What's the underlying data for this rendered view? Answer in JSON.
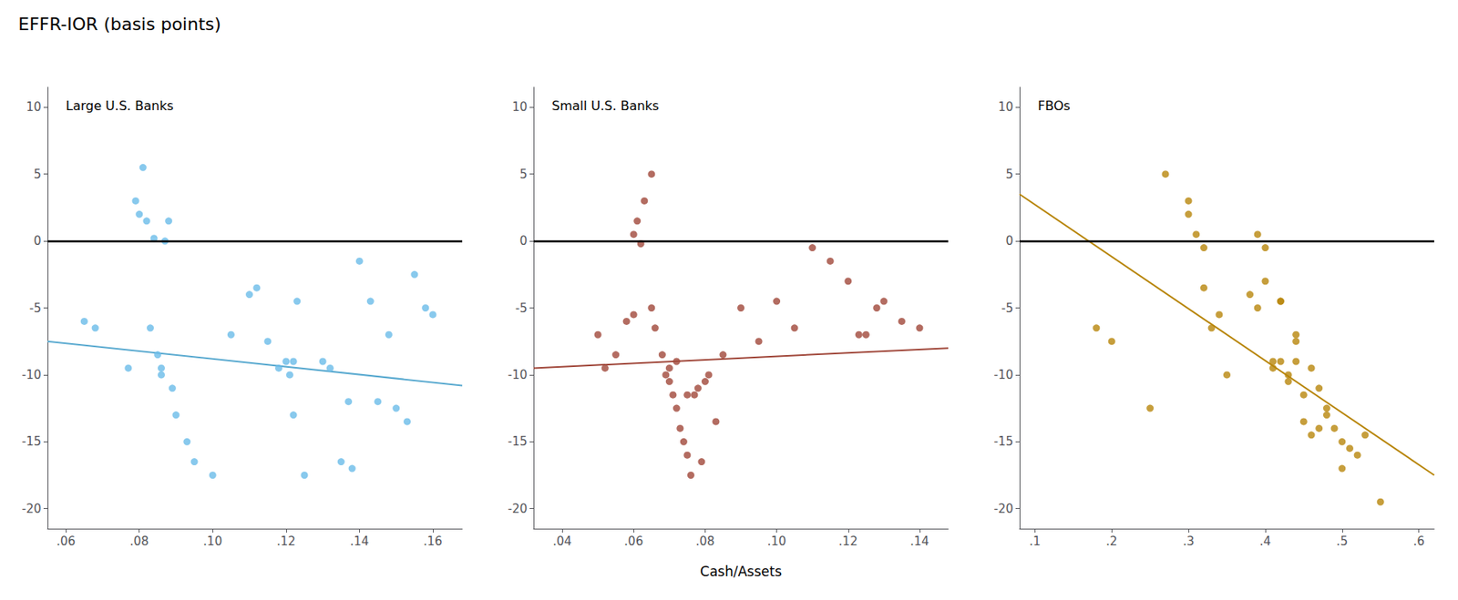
{
  "chart_data": [
    {
      "type": "scatter",
      "title": "EFFR-IOR (basis points)",
      "subtitle": "Large U.S. Banks",
      "grid": false,
      "xlim": [
        0.055,
        0.168
      ],
      "xticks": [
        {
          "value": 0.06,
          "label": ".06"
        },
        {
          "value": 0.08,
          "label": ".08"
        },
        {
          "value": 0.1,
          "label": ".10"
        },
        {
          "value": 0.12,
          "label": ".12"
        },
        {
          "value": 0.14,
          "label": ".14"
        },
        {
          "value": 0.16,
          "label": ".16"
        }
      ],
      "ylim": [
        -21.5,
        11.5
      ],
      "yticks": [
        -20,
        -15,
        -10,
        -5,
        0,
        5,
        10
      ],
      "series": [
        {
          "type": "scatter",
          "color": "#6ABBE8",
          "x": [
            0.065,
            0.068,
            0.077,
            0.079,
            0.08,
            0.081,
            0.082,
            0.083,
            0.084,
            0.085,
            0.086,
            0.086,
            0.087,
            0.088,
            0.089,
            0.09,
            0.093,
            0.095,
            0.1,
            0.105,
            0.11,
            0.112,
            0.115,
            0.118,
            0.12,
            0.121,
            0.122,
            0.122,
            0.123,
            0.125,
            0.13,
            0.132,
            0.135,
            0.137,
            0.138,
            0.14,
            0.143,
            0.145,
            0.148,
            0.15,
            0.153,
            0.155,
            0.158,
            0.16
          ],
          "values": [
            -6.0,
            -6.5,
            -9.5,
            3.0,
            2.0,
            5.5,
            1.5,
            -6.5,
            0.2,
            -8.5,
            -9.5,
            -10.0,
            0.0,
            1.5,
            -11.0,
            -13.0,
            -15.0,
            -16.5,
            -17.5,
            -7.0,
            -4.0,
            -3.5,
            -7.5,
            -9.5,
            -9.0,
            -10.0,
            -9.0,
            -13.0,
            -4.5,
            -17.5,
            -9.0,
            -9.5,
            -16.5,
            -12.0,
            -17.0,
            -1.5,
            -4.5,
            -12.0,
            -7.0,
            -12.5,
            -13.5,
            -2.5,
            -5.0,
            -5.5
          ]
        },
        {
          "type": "line",
          "color": "#5AAAD0",
          "x": [
            0.055,
            0.168
          ],
          "values": [
            -7.5,
            -10.8
          ]
        },
        {
          "type": "hline",
          "color": "#000000",
          "values": [
            0
          ]
        }
      ]
    },
    {
      "type": "scatter",
      "subtitle": "Small U.S. Banks",
      "xlabel": "Cash/Assets",
      "grid": false,
      "xlim": [
        0.032,
        0.148
      ],
      "xticks": [
        {
          "value": 0.04,
          "label": ".04"
        },
        {
          "value": 0.06,
          "label": ".06"
        },
        {
          "value": 0.08,
          "label": ".08"
        },
        {
          "value": 0.1,
          "label": ".10"
        },
        {
          "value": 0.12,
          "label": ".12"
        },
        {
          "value": 0.14,
          "label": ".14"
        }
      ],
      "ylim": [
        -21.5,
        11.5
      ],
      "yticks": [
        -20,
        -15,
        -10,
        -5,
        0,
        5,
        10
      ],
      "series": [
        {
          "type": "scatter",
          "color": "#A0473A",
          "x": [
            0.05,
            0.052,
            0.055,
            0.058,
            0.06,
            0.06,
            0.061,
            0.062,
            0.063,
            0.065,
            0.065,
            0.066,
            0.068,
            0.069,
            0.07,
            0.07,
            0.071,
            0.072,
            0.072,
            0.073,
            0.074,
            0.075,
            0.075,
            0.076,
            0.077,
            0.078,
            0.079,
            0.08,
            0.081,
            0.083,
            0.085,
            0.09,
            0.095,
            0.1,
            0.105,
            0.11,
            0.115,
            0.12,
            0.123,
            0.125,
            0.128,
            0.13,
            0.135,
            0.14
          ],
          "values": [
            -7.0,
            -9.5,
            -8.5,
            -6.0,
            0.5,
            -5.5,
            1.5,
            -0.2,
            3.0,
            5.0,
            -5.0,
            -6.5,
            -8.5,
            -10.0,
            -9.5,
            -10.5,
            -11.5,
            -12.5,
            -9.0,
            -14.0,
            -15.0,
            -16.0,
            -11.5,
            -17.5,
            -11.5,
            -11.0,
            -16.5,
            -10.5,
            -10.0,
            -13.5,
            -8.5,
            -5.0,
            -7.5,
            -4.5,
            -6.5,
            -0.5,
            -1.5,
            -3.0,
            -7.0,
            -7.0,
            -5.0,
            -4.5,
            -6.0,
            -6.5
          ]
        },
        {
          "type": "line",
          "color": "#A0473A",
          "x": [
            0.032,
            0.148
          ],
          "values": [
            -9.5,
            -8.0
          ]
        },
        {
          "type": "hline",
          "color": "#000000",
          "values": [
            0
          ]
        }
      ]
    },
    {
      "type": "scatter",
      "subtitle": "FBOs",
      "grid": false,
      "xlim": [
        0.08,
        0.62
      ],
      "xticks": [
        {
          "value": 0.1,
          "label": ".1"
        },
        {
          "value": 0.2,
          "label": ".2"
        },
        {
          "value": 0.3,
          "label": ".3"
        },
        {
          "value": 0.4,
          "label": ".4"
        },
        {
          "value": 0.5,
          "label": ".5"
        },
        {
          "value": 0.6,
          "label": ".6"
        }
      ],
      "ylim": [
        -21.5,
        11.5
      ],
      "yticks": [
        -20,
        -15,
        -10,
        -5,
        0,
        5,
        10
      ],
      "series": [
        {
          "type": "scatter",
          "color": "#B8860B",
          "x": [
            0.18,
            0.2,
            0.25,
            0.27,
            0.3,
            0.3,
            0.31,
            0.32,
            0.32,
            0.33,
            0.34,
            0.35,
            0.38,
            0.39,
            0.39,
            0.4,
            0.4,
            0.41,
            0.41,
            0.42,
            0.42,
            0.42,
            0.43,
            0.43,
            0.44,
            0.44,
            0.44,
            0.45,
            0.45,
            0.46,
            0.46,
            0.47,
            0.47,
            0.48,
            0.48,
            0.49,
            0.5,
            0.5,
            0.51,
            0.52,
            0.53,
            0.55
          ],
          "values": [
            -6.5,
            -7.5,
            -12.5,
            5.0,
            3.0,
            2.0,
            0.5,
            -0.5,
            -3.5,
            -6.5,
            -5.5,
            -10.0,
            -4.0,
            -5.0,
            0.5,
            -0.5,
            -3.0,
            -9.0,
            -9.5,
            -4.5,
            -4.5,
            -9.0,
            -10.0,
            -10.5,
            -7.0,
            -7.5,
            -9.0,
            -11.5,
            -13.5,
            -9.5,
            -14.5,
            -11.0,
            -14.0,
            -12.5,
            -13.0,
            -14.0,
            -15.0,
            -17.0,
            -15.5,
            -16.0,
            -14.5,
            -19.5
          ]
        },
        {
          "type": "line",
          "color": "#B8860B",
          "x": [
            0.08,
            0.62
          ],
          "values": [
            3.5,
            -17.5
          ]
        },
        {
          "type": "hline",
          "color": "#000000",
          "values": [
            0
          ]
        }
      ]
    }
  ]
}
